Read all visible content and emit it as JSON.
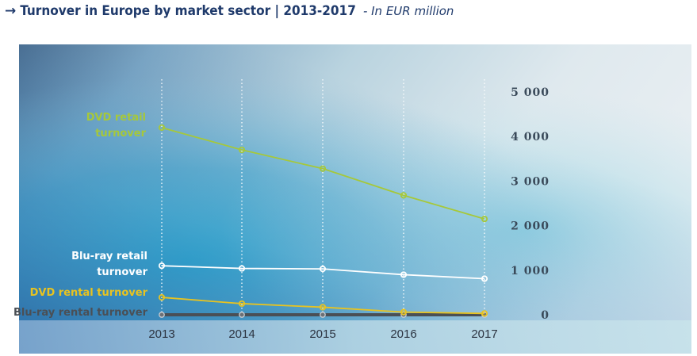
{
  "title": {
    "arrow": "→",
    "main": "Turnover in Europe by market sector | 2013-2017",
    "subtitle": "- In EUR million"
  },
  "colors": {
    "dvd_retail": "#a6c83a",
    "bluray_retail": "#ffffff",
    "dvd_rental": "#e8c320",
    "bluray_rental": "#4a4f55"
  },
  "chart_data": {
    "type": "line",
    "title": "Turnover in Europe by market sector | 2013-2017",
    "ylabel": "In EUR million",
    "x": [
      "2013",
      "2014",
      "2015",
      "2016",
      "2017"
    ],
    "ylim": [
      0,
      5000
    ],
    "yticks": [
      "0",
      "1 000",
      "2 000",
      "3 000",
      "4 000",
      "5 000"
    ],
    "ytick_values": [
      0,
      1000,
      2000,
      3000,
      4000,
      5000
    ],
    "grid": "vertical dotted",
    "series": [
      {
        "name": "DVD retail turnover",
        "label_lines": [
          "DVD retail",
          "turnover"
        ],
        "color_key": "dvd_retail",
        "values": [
          4200,
          3700,
          3280,
          2680,
          2150
        ]
      },
      {
        "name": "Blu-ray retail turnover",
        "label_lines": [
          "Blu-ray retail",
          "turnover"
        ],
        "color_key": "bluray_retail",
        "values": [
          1100,
          1040,
          1030,
          900,
          810
        ]
      },
      {
        "name": "DVD rental turnover",
        "label_lines": [
          "DVD rental turnover"
        ],
        "color_key": "dvd_rental",
        "values": [
          390,
          250,
          170,
          60,
          30
        ]
      },
      {
        "name": "Blu-ray rental turnover",
        "label_lines": [
          "Blu-ray rental turnover"
        ],
        "color_key": "bluray_rental",
        "values": [
          0,
          0,
          0,
          0,
          0
        ]
      }
    ]
  }
}
